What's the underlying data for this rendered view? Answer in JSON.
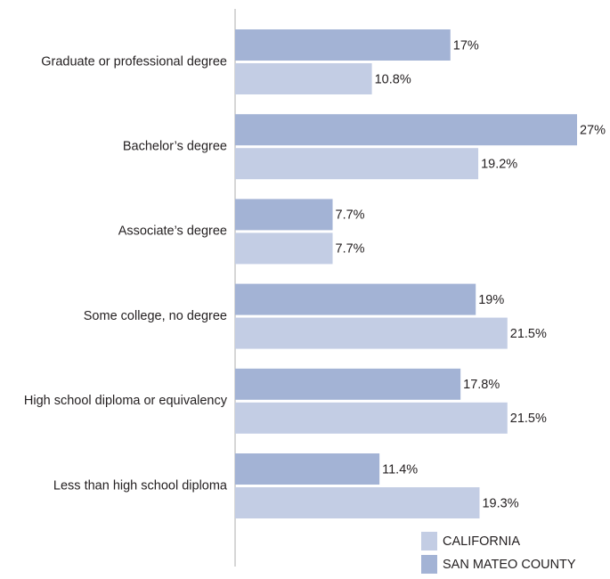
{
  "chart_data": {
    "type": "hbar",
    "categories": [
      "Graduate or professional degree",
      "Bachelor’s degree",
      "Associate’s degree",
      "Some college, no degree",
      "High school diploma or equivalency",
      "Less than high school diploma"
    ],
    "series": [
      {
        "name": "SAN MATEO COUNTY",
        "color": "#a3b3d5",
        "values": [
          17,
          27,
          7.7,
          19,
          17.8,
          11.4
        ],
        "value_labels": [
          "17%",
          "27%",
          "7.7%",
          "19%",
          "17.8%",
          "11.4%"
        ]
      },
      {
        "name": "CALIFORNIA",
        "color": "#c3cde4",
        "values": [
          10.8,
          19.2,
          7.7,
          21.5,
          21.5,
          19.3
        ],
        "value_labels": [
          "10.8%",
          "19.2%",
          "7.7%",
          "21.5%",
          "21.5%",
          "19.3%"
        ]
      }
    ],
    "xlim": [
      0,
      27
    ]
  }
}
